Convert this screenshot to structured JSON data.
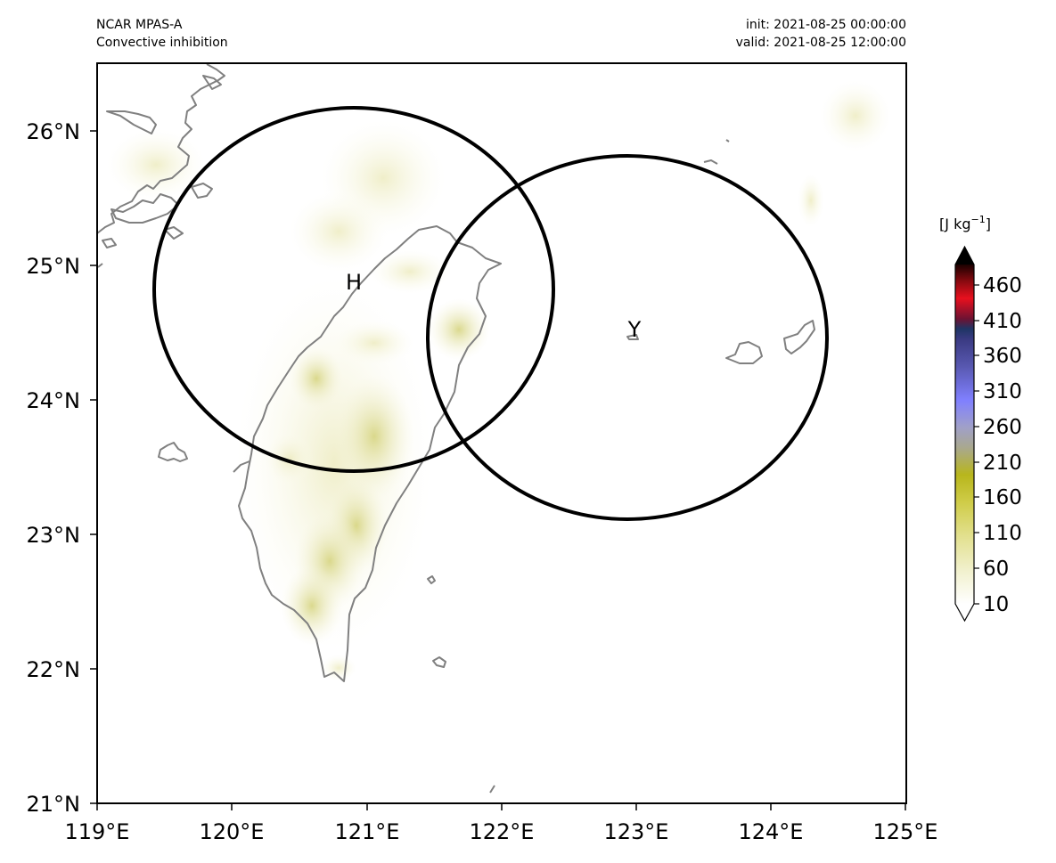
{
  "header": {
    "model": "NCAR MPAS-A",
    "field": "Convective inhibition",
    "init": "init: 2021-08-25 00:00:00",
    "valid": "valid: 2021-08-25 12:00:00"
  },
  "map": {
    "lon_range": [
      119,
      125
    ],
    "lat_range": [
      21,
      26.5
    ],
    "x_ticks": [
      "119°E",
      "120°E",
      "121°E",
      "122°E",
      "123°E",
      "124°E",
      "125°E"
    ],
    "y_ticks": [
      "21°N",
      "22°N",
      "23°N",
      "24°N",
      "25°N",
      "26°N"
    ],
    "coastline_color": "#808080",
    "circles": [
      {
        "label": "H",
        "center": [
          120.9,
          24.82
        ],
        "radius_deg_lon": 1.48,
        "radius_deg_lat": 1.36
      },
      {
        "label": "Y",
        "center": [
          122.95,
          24.47
        ],
        "radius_deg_lon": 1.48,
        "radius_deg_lat": 1.36
      }
    ]
  },
  "colorbar": {
    "unit": "[J kg",
    "unit_exp": "−1",
    "unit_close": "]",
    "ticks": [
      "460",
      "410",
      "360",
      "310",
      "260",
      "210",
      "160",
      "110",
      "60",
      "10"
    ],
    "range": [
      10,
      500
    ],
    "colors": [
      "#ffffff",
      "#f3f2d0",
      "#e6e49c",
      "#d5d25f",
      "#c4c11b",
      "#a8a85a",
      "#9a9aa8",
      "#8080ff",
      "#5a5ab8",
      "#1c2d6b",
      "#6e1030",
      "#e8001c",
      "#8a0a10",
      "#1a0000"
    ]
  }
}
